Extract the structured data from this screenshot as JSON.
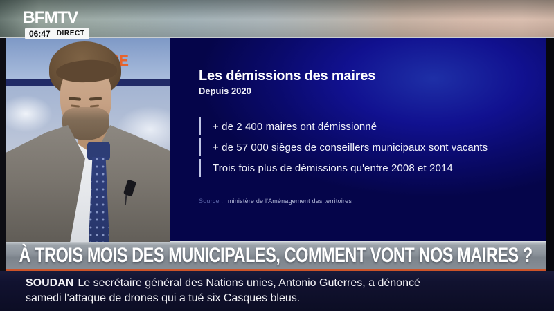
{
  "channel": {
    "logo": "BFMTV",
    "time": "06:47",
    "live_label": "DIRECT"
  },
  "studio": {
    "backdrop_brand": "PREMIÈRE"
  },
  "infographic": {
    "title": "Les démissions des maires",
    "subtitle": "Depuis 2020",
    "bullets": [
      "+ de 2 400 maires ont démissionné",
      "+ de 57 000 sièges de conseillers municipaux sont vacants",
      "Trois fois plus de démissions qu'entre 2008 et 2014"
    ],
    "source_label": "Source :",
    "source_value": "ministère de l'Aménagement des territoires"
  },
  "headline": {
    "text": "À TROIS MOIS DES MUNICIPALES, COMMENT VONT NOS MAIRES ?"
  },
  "ticker": {
    "tag": "SOUDAN",
    "line1": "Le secrétaire général des Nations unies, Antonio Guterres, a dénoncé",
    "line2": "samedi l'attaque de drones qui a tué six Casques bleus."
  },
  "colors": {
    "panel_navy": "#0a0a6c",
    "accent_orange": "#cd5429",
    "brand_orange": "#e7632c",
    "banner_gray": "#8c939b",
    "ticker_navy": "#111230"
  }
}
